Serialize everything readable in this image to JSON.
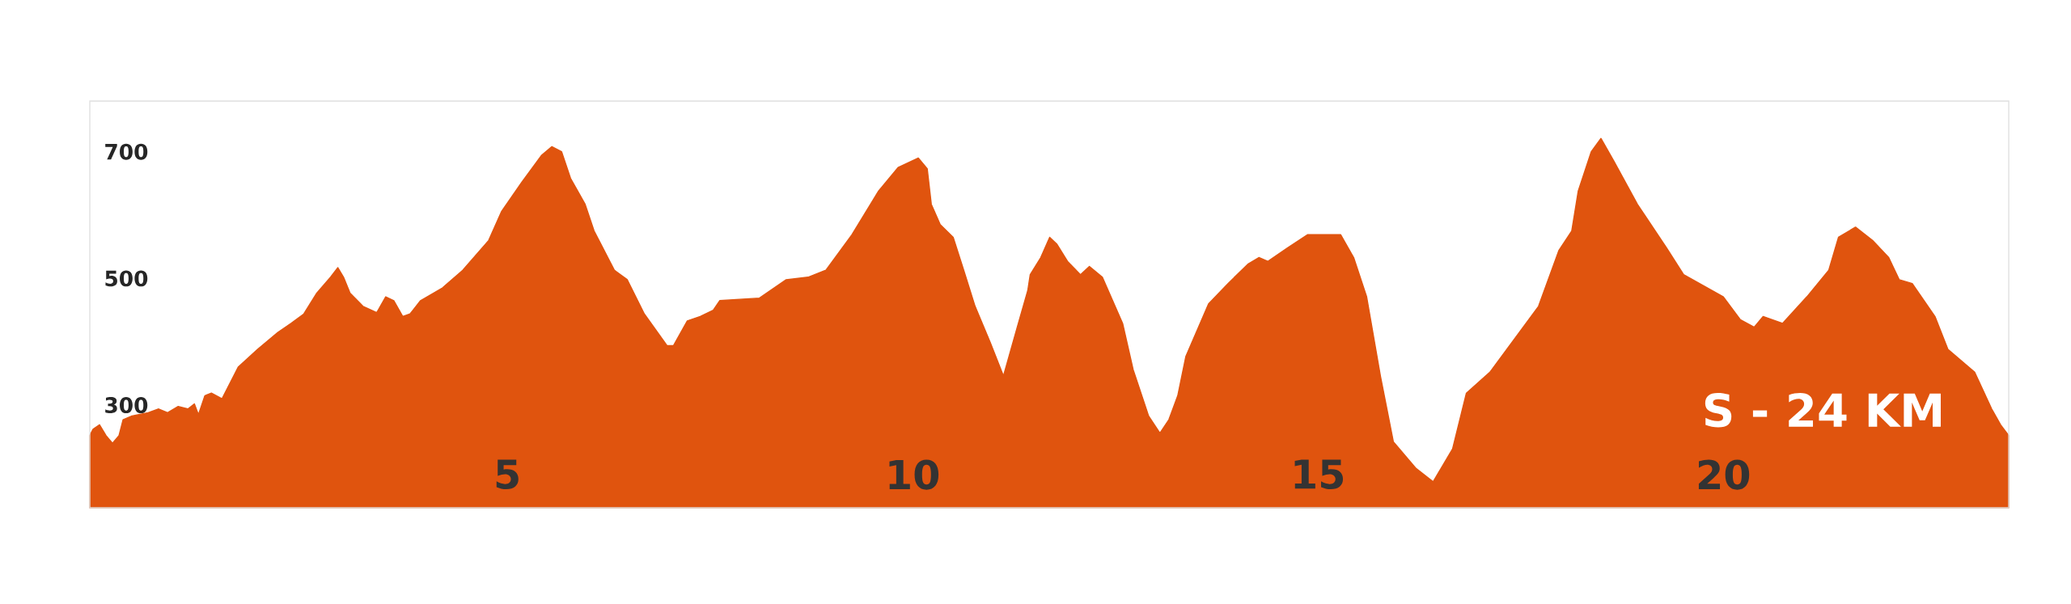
{
  "chart_data": {
    "type": "area",
    "color": "#e0540e",
    "x": [
      -0.15,
      -0.11,
      -0.03,
      0.05,
      0.13,
      0.21,
      0.26,
      0.37,
      0.57,
      0.7,
      0.81,
      0.94,
      1.06,
      1.14,
      1.19,
      1.27,
      1.35,
      1.48,
      1.6,
      1.68,
      1.92,
      2.17,
      2.33,
      2.49,
      2.65,
      2.82,
      2.91,
      2.98,
      3.06,
      3.22,
      3.39,
      3.5,
      3.6,
      3.71,
      3.8,
      3.93,
      4.2,
      4.45,
      4.77,
      4.93,
      5.18,
      5.42,
      5.55,
      5.67,
      5.78,
      5.96,
      6.07,
      6.32,
      6.48,
      6.69,
      6.97,
      7.05,
      7.22,
      7.38,
      7.54,
      7.62,
      8.11,
      8.44,
      8.71,
      8.93,
      9.25,
      9.58,
      9.82,
      10.07,
      10.18,
      10.23,
      10.34,
      10.5,
      10.63,
      10.77,
      10.96,
      11.12,
      11.29,
      11.42,
      11.45,
      11.58,
      11.69,
      11.78,
      11.91,
      12.07,
      12.18,
      12.34,
      12.59,
      12.72,
      12.91,
      13.05,
      13.16,
      13.27,
      13.37,
      13.65,
      13.89,
      14.14,
      14.27,
      14.38,
      14.62,
      14.87,
      15.28,
      15.44,
      15.6,
      15.77,
      15.93,
      16.21,
      16.42,
      16.66,
      16.83,
      17.12,
      17.72,
      17.97,
      18.13,
      18.21,
      18.37,
      18.49,
      18.65,
      18.94,
      19.3,
      19.51,
      20.0,
      20.21,
      20.38,
      20.49,
      20.73,
      21.03,
      21.3,
      21.42,
      21.63,
      21.84,
      22.04,
      22.17,
      22.33,
      22.61,
      22.77,
      23.1,
      23.31,
      23.42,
      23.52
    ],
    "values": [
      252,
      262,
      269,
      252,
      240,
      252,
      277,
      283,
      288,
      294,
      288,
      298,
      294,
      302,
      285,
      315,
      319,
      310,
      340,
      360,
      388,
      415,
      429,
      444,
      477,
      502,
      517,
      502,
      477,
      456,
      446,
      471,
      465,
      440,
      444,
      465,
      485,
      513,
      560,
      606,
      652,
      694,
      708,
      700,
      658,
      617,
      575,
      513,
      498,
      444,
      394,
      394,
      433,
      440,
      450,
      465,
      469,
      498,
      502,
      513,
      569,
      638,
      675,
      690,
      673,
      617,
      585,
      565,
      513,
      456,
      398,
      346,
      423,
      481,
      506,
      533,
      565,
      554,
      527,
      506,
      519,
      502,
      429,
      356,
      283,
      256,
      277,
      315,
      377,
      460,
      492,
      523,
      533,
      527,
      548,
      569,
      569,
      533,
      471,
      346,
      242,
      200,
      179,
      231,
      319,
      352,
      456,
      544,
      575,
      638,
      700,
      721,
      685,
      617,
      548,
      506,
      471,
      435,
      423,
      440,
      429,
      471,
      513,
      565,
      581,
      560,
      533,
      498,
      492,
      440,
      388,
      352,
      294,
      269,
      252
    ],
    "xlim": [
      -0.15,
      23.52
    ],
    "ylim": [
      138,
      780
    ],
    "xticks": [
      5,
      10,
      15,
      20
    ],
    "yticks": [
      300,
      500,
      700
    ],
    "annotations": [
      "S - 24 KM"
    ]
  }
}
